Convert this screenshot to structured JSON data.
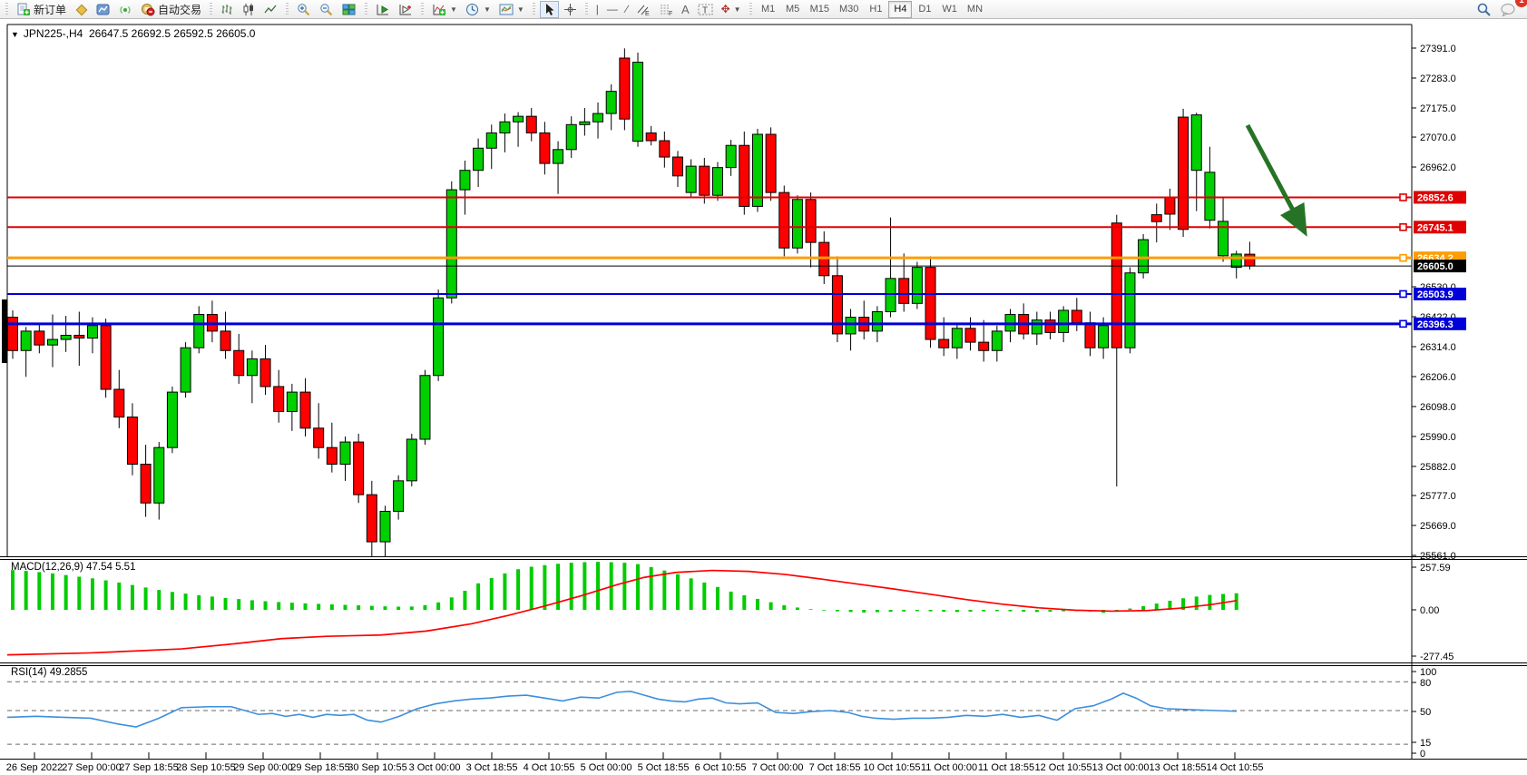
{
  "toolbar": {
    "new_order_label": "新订单",
    "autotrading_label": "自动交易",
    "timeframes": [
      "M1",
      "M5",
      "M15",
      "M30",
      "H1",
      "H4",
      "D1",
      "W1",
      "MN"
    ],
    "active_timeframe": "H4",
    "notification_count": "1",
    "icons": [
      "new-order",
      "toolbox",
      "new-chart",
      "signals",
      "autotrading",
      "bar-chart",
      "candlestick-chart",
      "line-chart",
      "zoom-in",
      "zoom-out",
      "tile-windows",
      "auto-scroll",
      "chart-shift",
      "indicators",
      "periods",
      "templates",
      "cursor",
      "crosshair",
      "vertical-line",
      "horizontal-line",
      "trendline",
      "equidistant-channel",
      "fibonacci",
      "text",
      "text-label",
      "arrows",
      "search",
      "chat"
    ]
  },
  "chart_header": {
    "symbol": "JPN225-,H4",
    "ohlc": "26647.5 26692.5 26592.5 26605.0"
  },
  "indicators": {
    "macd": {
      "label": "MACD(12,26,9)",
      "value": "47.54",
      "signal": "5.51",
      "axis_ticks": [
        "257.59",
        "0.00",
        "-277.45"
      ]
    },
    "rsi": {
      "label": "RSI(14)",
      "value": "49.2855",
      "levels": [
        "100",
        "80",
        "50",
        "15",
        "0"
      ]
    }
  },
  "chart_data": {
    "type": "candlestick",
    "title": "JPN225-,H4",
    "ylim": [
      25561.0,
      27460.0
    ],
    "grid": false,
    "price_ticks": [
      "27391.0",
      "27283.0",
      "27175.0",
      "27070.0",
      "26962.0",
      "26530.0",
      "26422.0",
      "26314.0",
      "26206.0",
      "26098.0",
      "25990.0",
      "25882.0",
      "25777.0",
      "25669.0",
      "25561.0"
    ],
    "x_labels": [
      "26 Sep 2022",
      "27 Sep 00:00",
      "27 Sep 18:55",
      "28 Sep 10:55",
      "29 Sep 00:00",
      "29 Sep 18:55",
      "30 Sep 10:55",
      "3 Oct 00:00",
      "3 Oct 18:55",
      "4 Oct 10:55",
      "5 Oct 00:00",
      "5 Oct 18:55",
      "6 Oct 10:55",
      "7 Oct 00:00",
      "7 Oct 18:55",
      "10 Oct 10:55",
      "11 Oct 00:00",
      "11 Oct 18:55",
      "12 Oct 10:55",
      "13 Oct 00:00",
      "13 Oct 18:55",
      "14 Oct 10:55"
    ],
    "hlines": [
      {
        "label": "26852.6",
        "price": 26852.6,
        "color": "#e00000",
        "width": 2
      },
      {
        "label": "26745.1",
        "price": 26745.1,
        "color": "#e00000",
        "width": 2
      },
      {
        "label": "26634.2",
        "price": 26634.2,
        "color": "#ff9c00",
        "width": 3
      },
      {
        "label": "26503.9",
        "price": 26503.9,
        "color": "#0000d8",
        "width": 2
      },
      {
        "label": "26396.3",
        "price": 26396.3,
        "color": "#0000d8",
        "width": 3
      }
    ],
    "current_price": {
      "label": "26605.0",
      "price": 26605.0,
      "color": "#000000"
    },
    "colors": {
      "up": "#00cf00",
      "down": "#ff0000",
      "wick": "#000000",
      "macd_hist": "#00cc00",
      "macd_signal": "#ff0000",
      "rsi_line": "#3c8fdd",
      "arrow": "#267326"
    },
    "candles": [
      [
        26420,
        26445,
        26270,
        26300
      ],
      [
        26300,
        26385,
        26205,
        26370
      ],
      [
        26370,
        26395,
        26290,
        26320
      ],
      [
        26320,
        26430,
        26240,
        26340
      ],
      [
        26340,
        26425,
        26295,
        26355
      ],
      [
        26355,
        26440,
        26245,
        26345
      ],
      [
        26345,
        26420,
        26290,
        26390
      ],
      [
        26390,
        26415,
        26130,
        26160
      ],
      [
        26160,
        26230,
        26020,
        26060
      ],
      [
        26060,
        26110,
        25850,
        25890
      ],
      [
        25890,
        25960,
        25700,
        25750
      ],
      [
        25750,
        25970,
        25690,
        25950
      ],
      [
        25950,
        26170,
        25930,
        26150
      ],
      [
        26150,
        26330,
        26130,
        26310
      ],
      [
        26310,
        26460,
        26290,
        26430
      ],
      [
        26430,
        26480,
        26330,
        26370
      ],
      [
        26370,
        26440,
        26270,
        26300
      ],
      [
        26300,
        26360,
        26180,
        26210
      ],
      [
        26210,
        26300,
        26110,
        26270
      ],
      [
        26270,
        26320,
        26140,
        26170
      ],
      [
        26170,
        26230,
        26040,
        26080
      ],
      [
        26080,
        26180,
        26010,
        26150
      ],
      [
        26150,
        26200,
        25990,
        26020
      ],
      [
        26020,
        26110,
        25910,
        25950
      ],
      [
        25950,
        26040,
        25860,
        25890
      ],
      [
        25890,
        25990,
        25830,
        25970
      ],
      [
        25970,
        26000,
        25750,
        25780
      ],
      [
        25780,
        25830,
        25550,
        25610
      ],
      [
        25610,
        25740,
        25535,
        25720
      ],
      [
        25720,
        25850,
        25690,
        25830
      ],
      [
        25830,
        26000,
        25810,
        25980
      ],
      [
        25980,
        26230,
        25960,
        26210
      ],
      [
        26210,
        26520,
        26190,
        26490
      ],
      [
        26490,
        26910,
        26470,
        26880
      ],
      [
        26880,
        26985,
        26790,
        26950
      ],
      [
        26950,
        27065,
        26890,
        27030
      ],
      [
        27030,
        27115,
        26955,
        27085
      ],
      [
        27085,
        27155,
        27015,
        27125
      ],
      [
        27125,
        27160,
        27035,
        27145
      ],
      [
        27145,
        27175,
        27055,
        27085
      ],
      [
        27085,
        27125,
        26935,
        26975
      ],
      [
        26975,
        27055,
        26865,
        27025
      ],
      [
        27025,
        27145,
        26995,
        27115
      ],
      [
        27115,
        27175,
        27075,
        27125
      ],
      [
        27125,
        27195,
        27065,
        27155
      ],
      [
        27155,
        27260,
        27095,
        27235
      ],
      [
        27355,
        27390,
        27095,
        27135
      ],
      [
        27055,
        27375,
        27035,
        27340
      ],
      [
        27085,
        27110,
        27040,
        27057
      ],
      [
        27057,
        27090,
        26960,
        26998
      ],
      [
        26998,
        27020,
        26890,
        26930
      ],
      [
        26870,
        26990,
        26850,
        26965
      ],
      [
        26965,
        26995,
        26830,
        26860
      ],
      [
        26860,
        26980,
        26840,
        26960
      ],
      [
        26960,
        27060,
        26930,
        27040
      ],
      [
        27040,
        27090,
        26790,
        26820
      ],
      [
        26820,
        27100,
        26800,
        27080
      ],
      [
        27080,
        27105,
        26840,
        26870
      ],
      [
        26870,
        26895,
        26640,
        26670
      ],
      [
        26670,
        26860,
        26650,
        26845
      ],
      [
        26845,
        26870,
        26600,
        26690
      ],
      [
        26690,
        26730,
        26540,
        26570
      ],
      [
        26570,
        26640,
        26330,
        26360
      ],
      [
        26360,
        26450,
        26300,
        26420
      ],
      [
        26420,
        26480,
        26340,
        26370
      ],
      [
        26370,
        26460,
        26330,
        26440
      ],
      [
        26440,
        26780,
        26420,
        26560
      ],
      [
        26560,
        26650,
        26440,
        26470
      ],
      [
        26470,
        26620,
        26450,
        26600
      ],
      [
        26600,
        26640,
        26310,
        26340
      ],
      [
        26340,
        26420,
        26280,
        26310
      ],
      [
        26310,
        26400,
        26270,
        26380
      ],
      [
        26380,
        26420,
        26300,
        26330
      ],
      [
        26330,
        26410,
        26260,
        26300
      ],
      [
        26300,
        26390,
        26260,
        26370
      ],
      [
        26370,
        26450,
        26330,
        26430
      ],
      [
        26430,
        26470,
        26340,
        26360
      ],
      [
        26360,
        26440,
        26320,
        26410
      ],
      [
        26410,
        26440,
        26340,
        26365
      ],
      [
        26365,
        26460,
        26330,
        26445
      ],
      [
        26445,
        26490,
        26370,
        26400
      ],
      [
        26400,
        26440,
        26280,
        26310
      ],
      [
        26310,
        26420,
        26270,
        26390
      ],
      [
        26760,
        26790,
        25810,
        26310
      ],
      [
        26310,
        26600,
        26290,
        26580
      ],
      [
        26580,
        26720,
        26560,
        26700
      ],
      [
        26790,
        26830,
        26690,
        26765
      ],
      [
        26851,
        26884,
        26735,
        26792
      ],
      [
        27142,
        27172,
        26710,
        26737
      ],
      [
        26950,
        27158,
        26803,
        27150
      ],
      [
        26770,
        27035,
        26740,
        26943
      ],
      [
        26642,
        26852,
        26620,
        26766
      ],
      [
        26600,
        26660,
        26560,
        26648
      ],
      [
        26647.5,
        26692.5,
        26592.5,
        26605.0
      ]
    ],
    "macd_hist": [
      240,
      235,
      228,
      220,
      210,
      200,
      190,
      178,
      165,
      150,
      135,
      120,
      108,
      98,
      88,
      80,
      72,
      65,
      58,
      52,
      47,
      43,
      39,
      36,
      33,
      30,
      27,
      24,
      21,
      19,
      20,
      28,
      45,
      75,
      115,
      160,
      192,
      220,
      245,
      260,
      270,
      278,
      284,
      288,
      290,
      288,
      284,
      276,
      258,
      238,
      215,
      190,
      165,
      138,
      110,
      88,
      66,
      46,
      28,
      14,
      4,
      -4,
      -9,
      -13,
      -16,
      -14,
      -12,
      -10,
      -8,
      -9,
      -11,
      -13,
      -11,
      -9,
      -8,
      -9,
      -11,
      -13,
      -11,
      -9,
      -8,
      -10,
      -18,
      -8,
      8,
      22,
      38,
      55,
      70,
      80,
      90,
      96,
      100
    ],
    "macd_signal_points": [
      [
        8,
        -272
      ],
      [
        100,
        -260
      ],
      [
        200,
        -236
      ],
      [
        260,
        -204
      ],
      [
        310,
        -174
      ],
      [
        360,
        -160
      ],
      [
        420,
        -152
      ],
      [
        470,
        -128
      ],
      [
        520,
        -84
      ],
      [
        560,
        -34
      ],
      [
        600,
        22
      ],
      [
        640,
        84
      ],
      [
        680,
        152
      ],
      [
        710,
        196
      ],
      [
        745,
        226
      ],
      [
        785,
        238
      ],
      [
        825,
        232
      ],
      [
        865,
        214
      ],
      [
        905,
        186
      ],
      [
        945,
        156
      ],
      [
        985,
        126
      ],
      [
        1025,
        94
      ],
      [
        1065,
        62
      ],
      [
        1105,
        34
      ],
      [
        1145,
        12
      ],
      [
        1185,
        -2
      ],
      [
        1225,
        -8
      ],
      [
        1265,
        -4
      ],
      [
        1300,
        10
      ],
      [
        1335,
        32
      ],
      [
        1363,
        56
      ]
    ],
    "rsi_points": [
      [
        8,
        43
      ],
      [
        40,
        44
      ],
      [
        70,
        43
      ],
      [
        100,
        42
      ],
      [
        130,
        36
      ],
      [
        150,
        33
      ],
      [
        175,
        42
      ],
      [
        200,
        53
      ],
      [
        230,
        54
      ],
      [
        255,
        54
      ],
      [
        270,
        50
      ],
      [
        285,
        46
      ],
      [
        300,
        47
      ],
      [
        315,
        44
      ],
      [
        330,
        46
      ],
      [
        345,
        43
      ],
      [
        360,
        46
      ],
      [
        375,
        45
      ],
      [
        390,
        46
      ],
      [
        405,
        40
      ],
      [
        420,
        38
      ],
      [
        440,
        44
      ],
      [
        460,
        52
      ],
      [
        480,
        57
      ],
      [
        500,
        60
      ],
      [
        520,
        62
      ],
      [
        540,
        63
      ],
      [
        560,
        65
      ],
      [
        580,
        66
      ],
      [
        600,
        63
      ],
      [
        620,
        60
      ],
      [
        640,
        64
      ],
      [
        660,
        63
      ],
      [
        680,
        69
      ],
      [
        695,
        70
      ],
      [
        710,
        66
      ],
      [
        725,
        62
      ],
      [
        740,
        60
      ],
      [
        755,
        59
      ],
      [
        770,
        62
      ],
      [
        785,
        63
      ],
      [
        800,
        58
      ],
      [
        815,
        57
      ],
      [
        835,
        58
      ],
      [
        855,
        48
      ],
      [
        875,
        47
      ],
      [
        895,
        49
      ],
      [
        915,
        50
      ],
      [
        935,
        48
      ],
      [
        950,
        44
      ],
      [
        965,
        42
      ],
      [
        985,
        41
      ],
      [
        1005,
        42
      ],
      [
        1025,
        42
      ],
      [
        1045,
        43
      ],
      [
        1065,
        45
      ],
      [
        1085,
        44
      ],
      [
        1105,
        46
      ],
      [
        1125,
        43
      ],
      [
        1145,
        45
      ],
      [
        1165,
        40
      ],
      [
        1185,
        52
      ],
      [
        1205,
        55
      ],
      [
        1225,
        62
      ],
      [
        1238,
        68
      ],
      [
        1252,
        63
      ],
      [
        1268,
        55
      ],
      [
        1285,
        52
      ],
      [
        1310,
        51
      ],
      [
        1340,
        50
      ],
      [
        1363,
        49.3
      ]
    ],
    "arrow": {
      "from": [
        1375,
        138
      ],
      "to": [
        1436,
        252
      ]
    }
  }
}
